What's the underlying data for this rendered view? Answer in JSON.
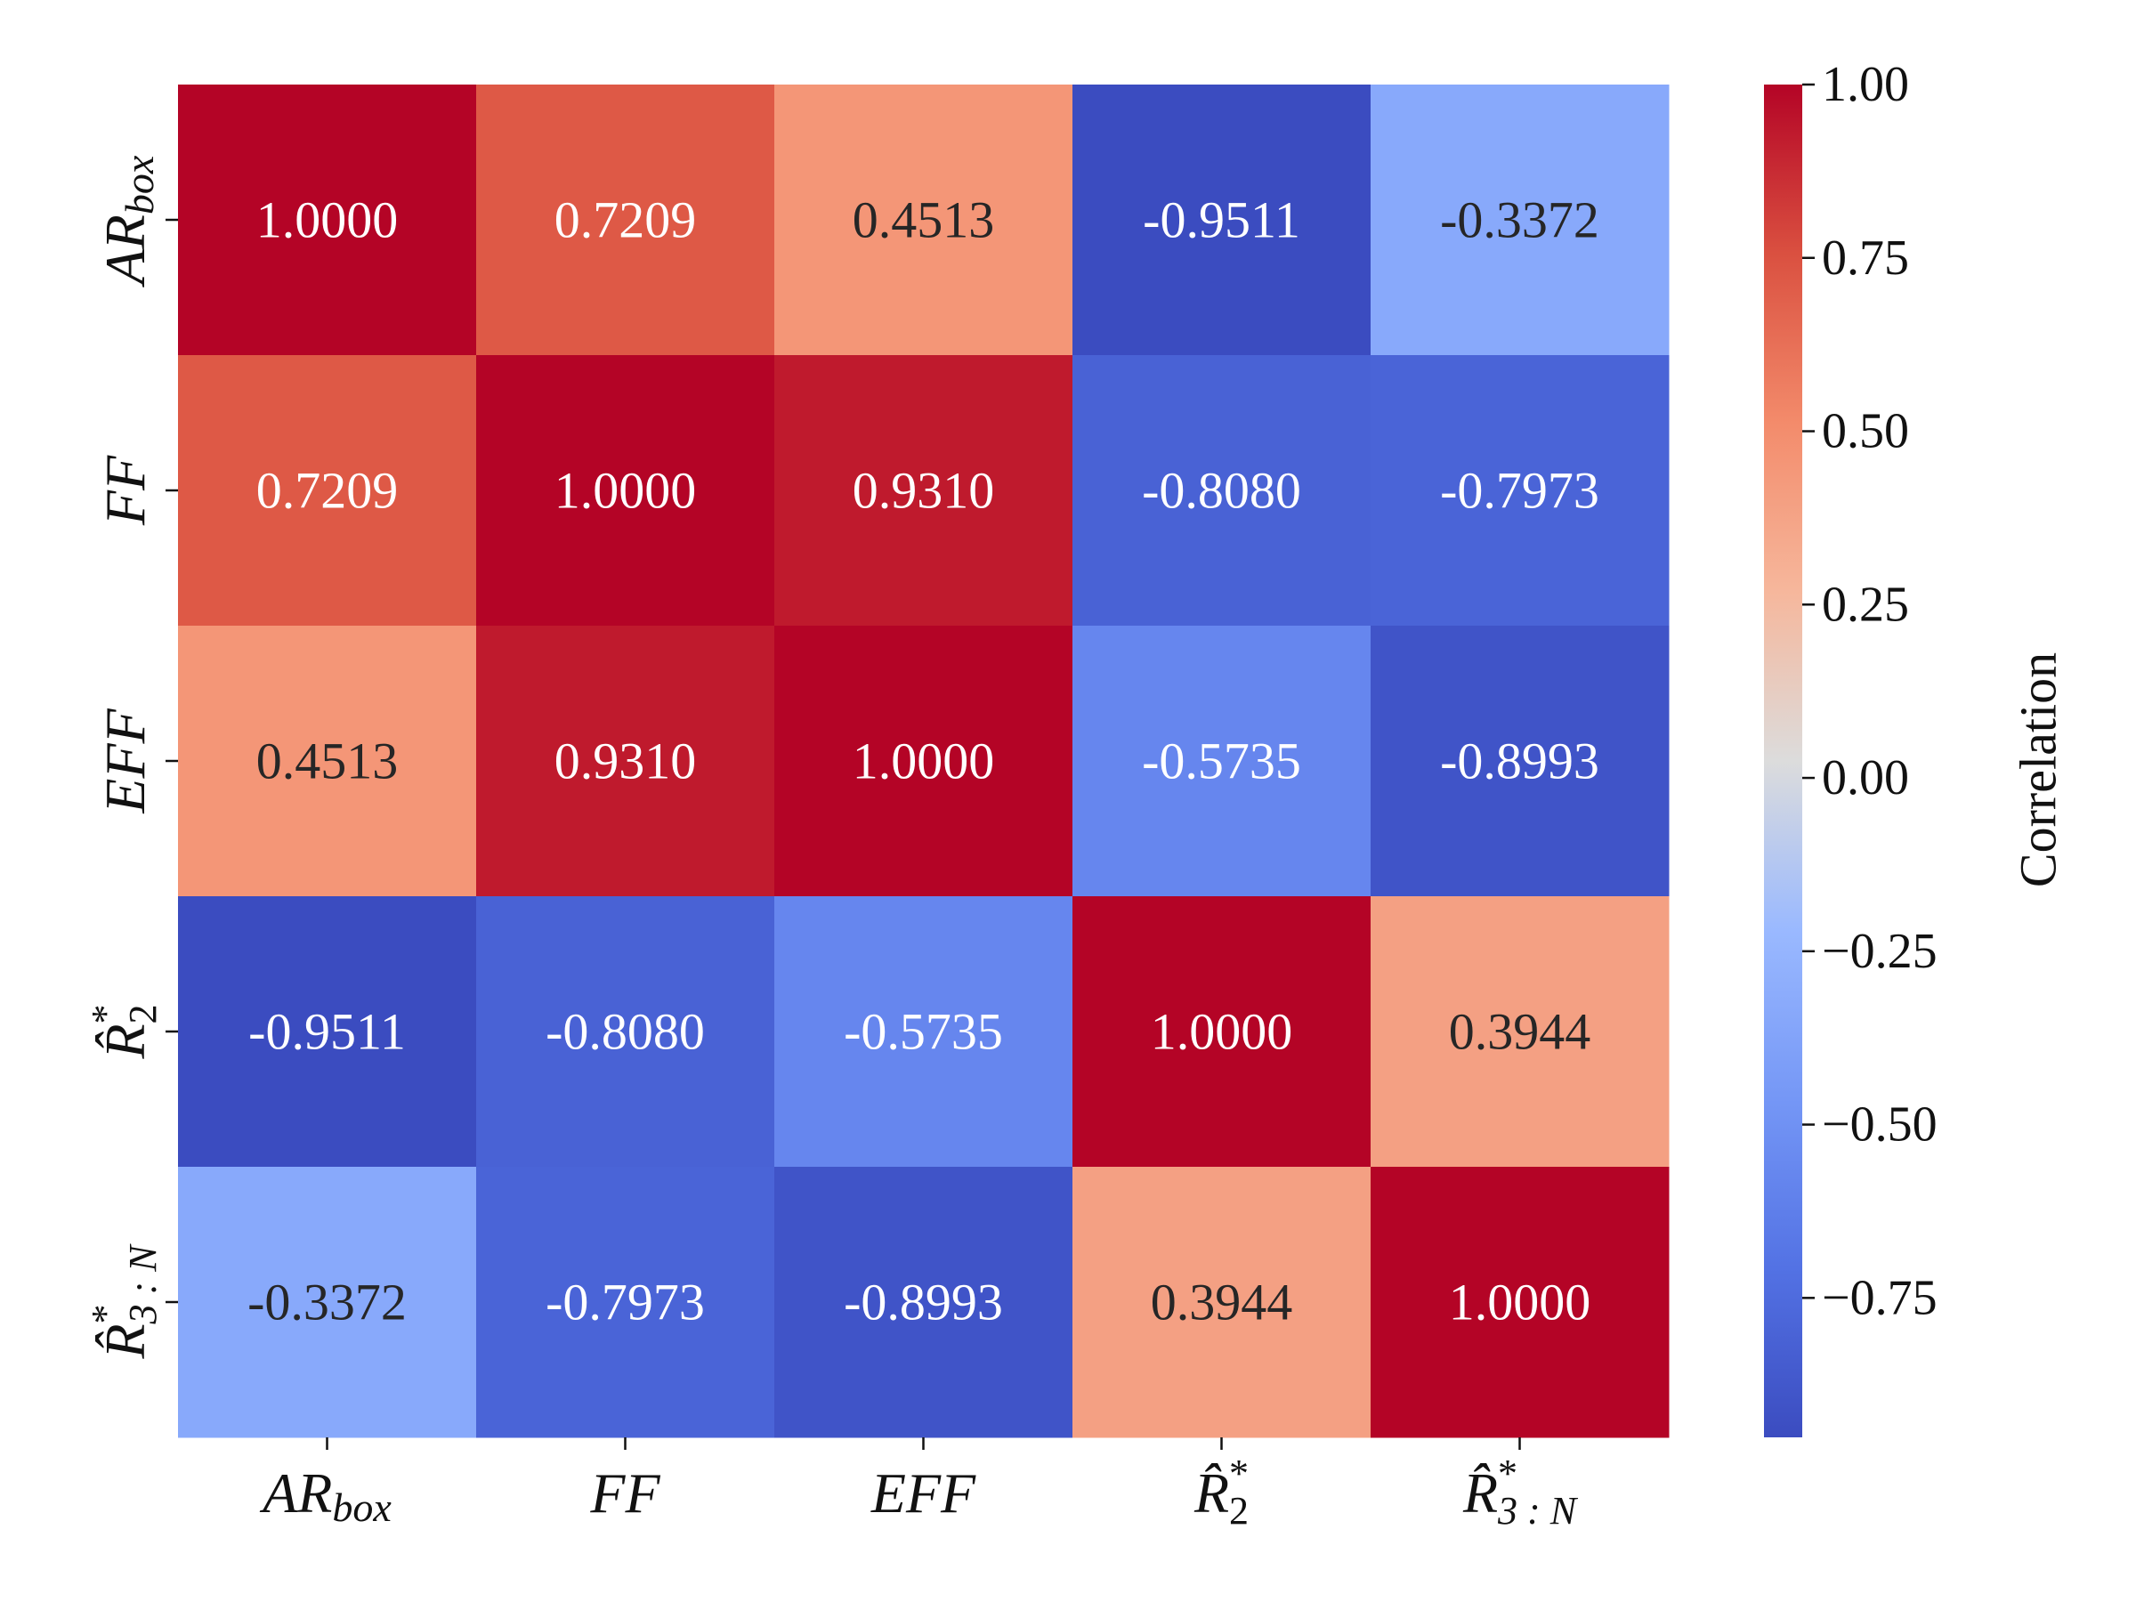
{
  "chart_data": {
    "type": "heatmap",
    "title": "",
    "x_labels": [
      {
        "base": "AR",
        "sub": "box",
        "sup": "",
        "hat": false
      },
      {
        "base": "FF",
        "sub": "",
        "sup": "",
        "hat": false
      },
      {
        "base": "EFF",
        "sub": "",
        "sup": "",
        "hat": false
      },
      {
        "base": "R",
        "sub": "2",
        "sup": "*",
        "hat": true
      },
      {
        "base": "R",
        "sub": "3 : N",
        "sup": "*",
        "hat": true
      }
    ],
    "y_labels": [
      {
        "base": "AR",
        "sub": "box",
        "sup": "",
        "hat": false
      },
      {
        "base": "FF",
        "sub": "",
        "sup": "",
        "hat": false
      },
      {
        "base": "EFF",
        "sub": "",
        "sup": "",
        "hat": false
      },
      {
        "base": "R",
        "sub": "2",
        "sup": "*",
        "hat": true
      },
      {
        "base": "R",
        "sub": "3 : N",
        "sup": "*",
        "hat": true
      }
    ],
    "values": [
      [
        1.0,
        0.7209,
        0.4513,
        -0.9511,
        -0.3372
      ],
      [
        0.7209,
        1.0,
        0.931,
        -0.808,
        -0.7973
      ],
      [
        0.4513,
        0.931,
        1.0,
        -0.5735,
        -0.8993
      ],
      [
        -0.9511,
        -0.808,
        -0.5735,
        1.0,
        0.3944
      ],
      [
        -0.3372,
        -0.7973,
        -0.8993,
        0.3944,
        1.0
      ]
    ],
    "value_format": "0.0000",
    "colormap": "coolwarm",
    "vmin": -0.9511,
    "vmax": 1.0,
    "colorbar": {
      "label": "Correlation",
      "ticks": [
        1.0,
        0.75,
        0.5,
        0.25,
        0.0,
        -0.25,
        -0.5,
        -0.75
      ],
      "tick_labels": [
        "1.00",
        "0.75",
        "0.50",
        "0.25",
        "0.00",
        "−0.25",
        "−0.50",
        "−0.75"
      ]
    }
  }
}
